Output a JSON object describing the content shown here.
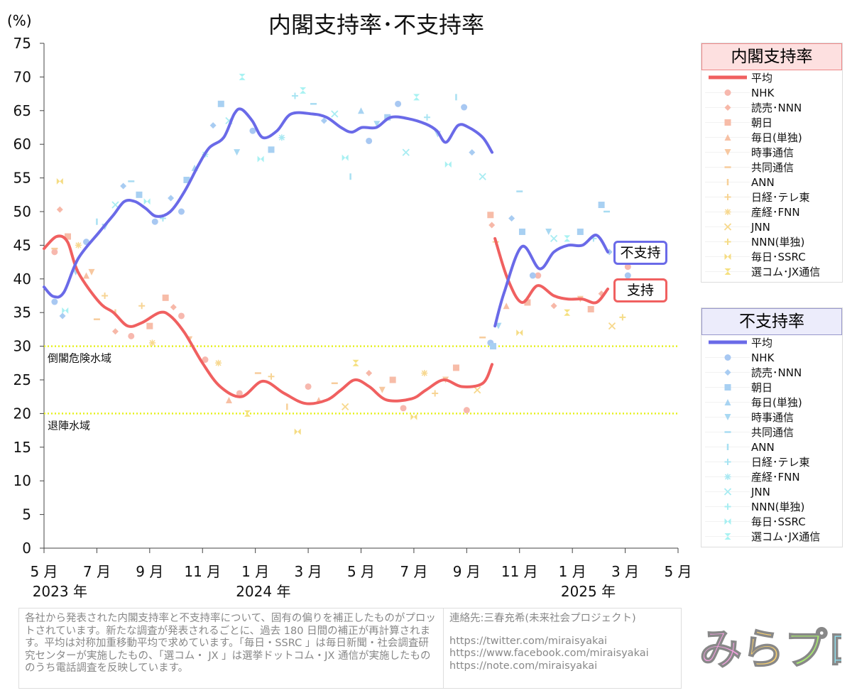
{
  "title": "内閣支持率･不支持率",
  "unit": "(%)",
  "tags": {
    "disapprove": "不支持",
    "approve": "支持"
  },
  "thresholds": [
    {
      "value": 30,
      "label": "倒閣危険水域"
    },
    {
      "value": 20,
      "label": "退陣水域"
    }
  ],
  "colors": {
    "approve": "#f06060",
    "disapprove": "#6a6ae8",
    "threshold": "#e6f020"
  },
  "legend": {
    "approve": {
      "title": "内閣支持率",
      "avg": "平均"
    },
    "disapprove": {
      "title": "不支持率",
      "avg": "平均"
    },
    "pollsters": [
      "NHK",
      "読売･NNN",
      "朝日",
      "毎日(単独)",
      "時事通信",
      "共同通信",
      "ANN",
      "日経･テレ東",
      "産経･FNN",
      "JNN",
      "NNN(単独)",
      "毎日･SSRC",
      "選コム･JX通信"
    ],
    "approve_colors": [
      "#f7b8ae",
      "#f7b8a8",
      "#f7bca8",
      "#f7c0a4",
      "#f7c8a0",
      "#f7cc9c",
      "#f7d098",
      "#f7d494",
      "#f7d890",
      "#f7d88c",
      "#f5dc88",
      "#f5dc84",
      "#f5e080"
    ],
    "disapprove_colors": [
      "#a8c8f2",
      "#a8ccf2",
      "#a8d0f2",
      "#a8d4f2",
      "#a8d8f2",
      "#a8dcf2",
      "#a8e0f2",
      "#a8e4f2",
      "#a8e8f2",
      "#a8ecf2",
      "#a8eef2",
      "#a8f0f2",
      "#a8f2f2"
    ]
  },
  "chart_data": {
    "type": "line",
    "title": "内閣支持率･不支持率",
    "ylabel": "(%)",
    "ylim": [
      0,
      75
    ],
    "yticks": [
      0,
      5,
      10,
      15,
      20,
      25,
      30,
      35,
      40,
      45,
      50,
      55,
      60,
      65,
      70,
      75
    ],
    "x_unit": "months since May 2023",
    "xlim": [
      0,
      24
    ],
    "xticks": [
      {
        "m": 0,
        "label": "5 月"
      },
      {
        "m": 2,
        "label": "7 月"
      },
      {
        "m": 4,
        "label": "9 月"
      },
      {
        "m": 6,
        "label": "11 月"
      },
      {
        "m": 8,
        "label": "1 月"
      },
      {
        "m": 10,
        "label": "3 月"
      },
      {
        "m": 12,
        "label": "5 月"
      },
      {
        "m": 14,
        "label": "7 月"
      },
      {
        "m": 16,
        "label": "9 月"
      },
      {
        "m": 18,
        "label": "11 月"
      },
      {
        "m": 20,
        "label": "1 月"
      },
      {
        "m": 22,
        "label": "3 月"
      },
      {
        "m": 24,
        "label": "5 月"
      }
    ],
    "years": [
      {
        "m": 0.6,
        "label": "2023 年"
      },
      {
        "m": 8.3,
        "label": "2024 年"
      },
      {
        "m": 20.6,
        "label": "2025 年"
      }
    ],
    "series": [
      {
        "name": "支持 平均",
        "segments": [
          [
            [
              0,
              44.5
            ],
            [
              0.48,
              46.3
            ],
            [
              0.89,
              45.5
            ],
            [
              1.29,
              41
            ],
            [
              2.1,
              36.5
            ],
            [
              2.63,
              35
            ],
            [
              3.17,
              33
            ],
            [
              3.71,
              33.5
            ],
            [
              4.38,
              35
            ],
            [
              4.78,
              34.5
            ],
            [
              5.32,
              32
            ],
            [
              6.0,
              27.5
            ],
            [
              6.67,
              24
            ],
            [
              7.47,
              22.5
            ],
            [
              8.28,
              24.8
            ],
            [
              9.09,
              23
            ],
            [
              9.89,
              21.5
            ],
            [
              10.7,
              22
            ],
            [
              11.24,
              23.5
            ],
            [
              11.77,
              25
            ],
            [
              12.31,
              24
            ],
            [
              12.98,
              22
            ],
            [
              13.92,
              22.2
            ],
            [
              14.46,
              23.5
            ],
            [
              15.13,
              25
            ],
            [
              15.81,
              24
            ],
            [
              16.61,
              24.5
            ],
            [
              16.96,
              27.3
            ]
          ],
          [
            [
              17.07,
              46
            ],
            [
              17.55,
              40
            ],
            [
              18.09,
              36.5
            ],
            [
              18.68,
              39
            ],
            [
              19.3,
              37.5
            ],
            [
              19.84,
              37
            ],
            [
              20.38,
              37
            ],
            [
              20.91,
              36.5
            ],
            [
              21.34,
              38.5
            ]
          ]
        ]
      },
      {
        "name": "不支持 平均",
        "segments": [
          [
            [
              0,
              38.8
            ],
            [
              0.35,
              37.4
            ],
            [
              0.75,
              38
            ],
            [
              1.29,
              43
            ],
            [
              2.1,
              47
            ],
            [
              2.63,
              49.5
            ],
            [
              3.04,
              51.5
            ],
            [
              3.44,
              51.5
            ],
            [
              3.84,
              50.5
            ],
            [
              4.25,
              49.3
            ],
            [
              4.78,
              50
            ],
            [
              5.32,
              53
            ],
            [
              5.86,
              57
            ],
            [
              6.26,
              59.5
            ],
            [
              6.8,
              61
            ],
            [
              7.2,
              64.5
            ],
            [
              7.47,
              65.2
            ],
            [
              7.88,
              63.5
            ],
            [
              8.28,
              61
            ],
            [
              8.82,
              62
            ],
            [
              9.35,
              64.5
            ],
            [
              10.16,
              64.5
            ],
            [
              10.7,
              64
            ],
            [
              11.24,
              62.5
            ],
            [
              11.64,
              61.8
            ],
            [
              12.04,
              62.5
            ],
            [
              12.58,
              62.5
            ],
            [
              13.12,
              64
            ],
            [
              13.79,
              63.8
            ],
            [
              14.46,
              63
            ],
            [
              14.87,
              62
            ],
            [
              15.22,
              60.3
            ],
            [
              15.67,
              62.8
            ],
            [
              16.08,
              62.5
            ],
            [
              16.61,
              61
            ],
            [
              16.96,
              58.8
            ]
          ],
          [
            [
              17.07,
              33
            ],
            [
              17.42,
              38
            ],
            [
              18.09,
              44.8
            ],
            [
              18.76,
              41.5
            ],
            [
              19.3,
              44
            ],
            [
              19.84,
              45
            ],
            [
              20.38,
              45
            ],
            [
              20.91,
              46.5
            ],
            [
              21.34,
              44
            ]
          ]
        ]
      }
    ],
    "approve_points": [
      [
        0.4,
        44,
        0
      ],
      [
        0.4,
        44.5,
        5
      ],
      [
        0.6,
        50.3,
        1
      ],
      [
        0.6,
        54.5,
        11
      ],
      [
        0.9,
        46.3,
        2
      ],
      [
        1.3,
        45,
        8
      ],
      [
        1.6,
        40.5,
        3
      ],
      [
        1.8,
        41,
        4
      ],
      [
        2.0,
        34,
        5
      ],
      [
        2.3,
        37.5,
        7
      ],
      [
        2.7,
        35,
        6
      ],
      [
        2.7,
        32.2,
        1
      ],
      [
        3.3,
        31.5,
        0
      ],
      [
        3.7,
        36,
        7
      ],
      [
        4.0,
        33,
        2
      ],
      [
        4.1,
        30.5,
        8
      ],
      [
        4.6,
        37.2,
        2
      ],
      [
        4.9,
        35.8,
        1
      ],
      [
        5.2,
        34.5,
        0
      ],
      [
        5.5,
        31,
        4
      ],
      [
        6.1,
        28,
        0
      ],
      [
        6.6,
        27.5,
        8
      ],
      [
        7.0,
        22,
        3
      ],
      [
        7.4,
        23,
        0
      ],
      [
        7.7,
        20,
        12
      ],
      [
        8.1,
        26,
        5
      ],
      [
        8.6,
        25.5,
        7
      ],
      [
        9.2,
        21,
        6
      ],
      [
        9.6,
        17.3,
        11
      ],
      [
        10.0,
        24,
        0
      ],
      [
        10.4,
        22,
        3
      ],
      [
        11.0,
        24.5,
        5
      ],
      [
        11.4,
        21,
        9
      ],
      [
        11.8,
        27.5,
        12
      ],
      [
        12.3,
        26,
        1
      ],
      [
        12.8,
        23.5,
        4
      ],
      [
        13.2,
        25,
        2
      ],
      [
        13.6,
        20.8,
        0
      ],
      [
        14.0,
        19.5,
        11
      ],
      [
        14.4,
        26,
        8
      ],
      [
        14.8,
        23,
        7
      ],
      [
        15.2,
        25,
        4
      ],
      [
        15.6,
        26.8,
        2
      ],
      [
        16.0,
        20.5,
        0
      ],
      [
        16.4,
        23.5,
        9
      ],
      [
        16.6,
        31.3,
        5
      ],
      [
        16.9,
        49.5,
        2
      ],
      [
        16.95,
        48,
        1
      ],
      [
        17.1,
        45.5,
        7
      ],
      [
        17.5,
        36,
        3
      ],
      [
        18.0,
        32,
        11
      ],
      [
        18.3,
        36.5,
        2
      ],
      [
        18.7,
        40.5,
        0
      ],
      [
        19.3,
        36,
        1
      ],
      [
        19.8,
        35,
        12
      ],
      [
        20.3,
        37,
        4
      ],
      [
        20.7,
        35.5,
        2
      ],
      [
        21.1,
        37.8,
        1
      ],
      [
        21.5,
        33,
        9
      ],
      [
        21.9,
        34.3,
        10
      ],
      [
        22.1,
        41.8,
        0
      ]
    ],
    "disapprove_points": [
      [
        0.4,
        36.6,
        0
      ],
      [
        0.7,
        34.5,
        1
      ],
      [
        0.8,
        35.3,
        11
      ],
      [
        1.2,
        41,
        4
      ],
      [
        1.6,
        45.5,
        0
      ],
      [
        2.0,
        48.5,
        6
      ],
      [
        2.3,
        47.7,
        4
      ],
      [
        2.7,
        51,
        9
      ],
      [
        3.0,
        53.8,
        1
      ],
      [
        3.3,
        54.5,
        5
      ],
      [
        3.6,
        52.5,
        2
      ],
      [
        3.9,
        51.5,
        11
      ],
      [
        4.2,
        48.5,
        0
      ],
      [
        4.5,
        49,
        7
      ],
      [
        4.8,
        52,
        1
      ],
      [
        5.2,
        50,
        0
      ],
      [
        5.4,
        54.7,
        2
      ],
      [
        5.7,
        56.5,
        3
      ],
      [
        6.1,
        58.5,
        8
      ],
      [
        6.4,
        62.8,
        1
      ],
      [
        6.7,
        66,
        2
      ],
      [
        7.0,
        63.5,
        9
      ],
      [
        7.3,
        58.8,
        4
      ],
      [
        7.5,
        70,
        12
      ],
      [
        7.9,
        62,
        0
      ],
      [
        8.2,
        57.8,
        11
      ],
      [
        8.6,
        59.2,
        2
      ],
      [
        9.0,
        61,
        8
      ],
      [
        9.5,
        67.2,
        7
      ],
      [
        9.8,
        68,
        12
      ],
      [
        10.2,
        66,
        5
      ],
      [
        10.6,
        63.5,
        1
      ],
      [
        11.0,
        64.5,
        9
      ],
      [
        11.4,
        58,
        11
      ],
      [
        11.6,
        55.2,
        6
      ],
      [
        12.0,
        65,
        3
      ],
      [
        12.3,
        60.5,
        0
      ],
      [
        12.6,
        63,
        4
      ],
      [
        13.0,
        64,
        2
      ],
      [
        13.4,
        66,
        0
      ],
      [
        13.7,
        58.8,
        9
      ],
      [
        14.1,
        67,
        12
      ],
      [
        14.5,
        64,
        7
      ],
      [
        14.9,
        61.5,
        4
      ],
      [
        15.3,
        57,
        11
      ],
      [
        15.6,
        67,
        6
      ],
      [
        15.9,
        65.5,
        0
      ],
      [
        16.2,
        58.8,
        1
      ],
      [
        16.6,
        55.2,
        9
      ],
      [
        16.9,
        30.5,
        0
      ],
      [
        17.0,
        30,
        2
      ],
      [
        17.2,
        33,
        4
      ],
      [
        17.7,
        49,
        1
      ],
      [
        18.0,
        53,
        5
      ],
      [
        18.1,
        47,
        2
      ],
      [
        18.5,
        40.5,
        0
      ],
      [
        19.1,
        47,
        4
      ],
      [
        19.3,
        46,
        9
      ],
      [
        19.8,
        46,
        12
      ],
      [
        20.3,
        47,
        2
      ],
      [
        20.8,
        46,
        7
      ],
      [
        21.1,
        51,
        2
      ],
      [
        21.3,
        50,
        5
      ],
      [
        21.4,
        44,
        1
      ],
      [
        22.1,
        40.5,
        0
      ]
    ]
  },
  "footer": {
    "note": "各社から発表された内閣支持率と不支持率について、固有の偏りを補正したものがプロットされています。新たな調査が発表されるごとに、過去 180 日間の補正が再計算されます。平均は対称加重移動平均で求めています。「毎日・SSRC 」は毎日新聞・社会調査研究センターが実施したもの、「選コム・ JX 」は選挙ドットコム・JX 通信が実施したもののうち電話調査を反映しています。",
    "contact": "連絡先:三春充希(未来社会プロジェクト)",
    "links": [
      "https://twitter.com/miraisyakai",
      "https://www.facebook.com/miraisyakai",
      "https://note.com/miraisyakai"
    ],
    "logo": "みらプロ"
  }
}
